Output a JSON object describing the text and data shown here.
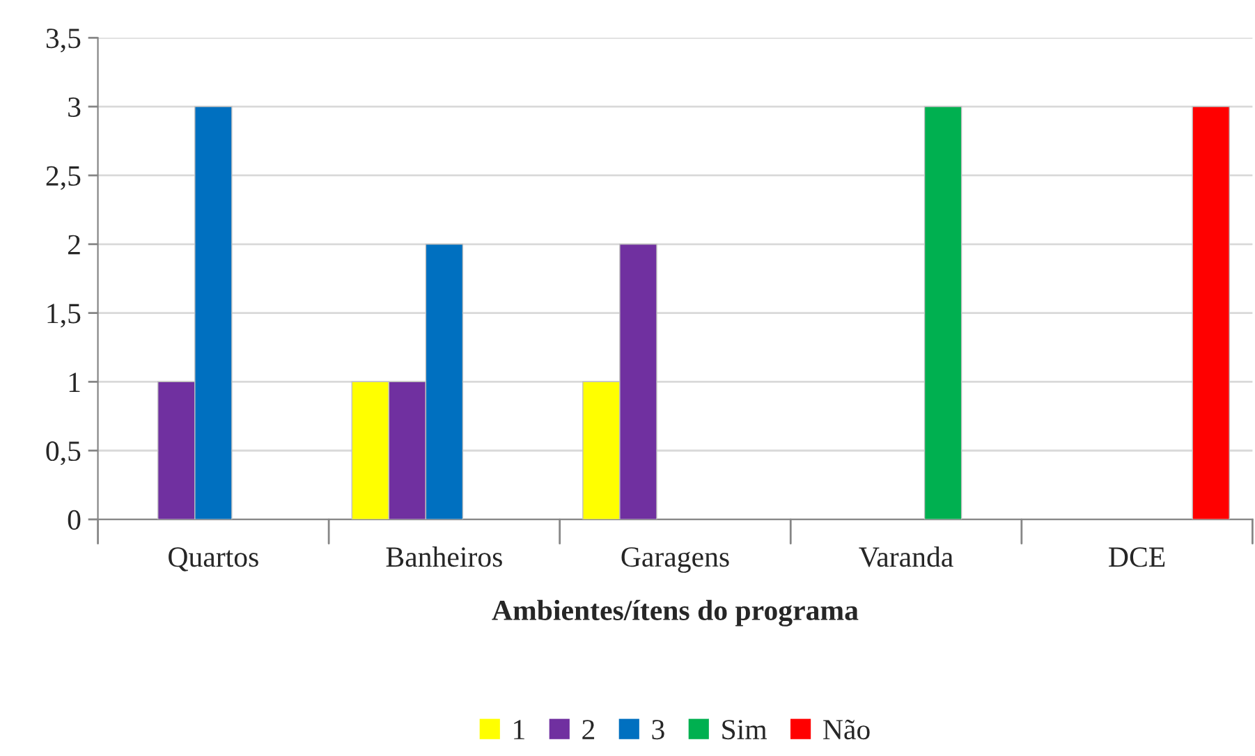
{
  "chart_data": {
    "type": "bar",
    "xlabel": "Ambientes/ítens do programa",
    "categories": [
      "Quartos",
      "Banheiros",
      "Garagens",
      "Varanda",
      "DCE"
    ],
    "series": [
      {
        "name": "1",
        "color": "#ffff00",
        "values": [
          null,
          1,
          1,
          null,
          null
        ]
      },
      {
        "name": "2",
        "color": "#7030a0",
        "values": [
          1,
          1,
          2,
          null,
          null
        ]
      },
      {
        "name": "3",
        "color": "#0070c0",
        "values": [
          3,
          2,
          null,
          null,
          null
        ]
      },
      {
        "name": "Sim",
        "color": "#00b050",
        "values": [
          null,
          null,
          null,
          3,
          null
        ]
      },
      {
        "name": "Não",
        "color": "#ff0000",
        "values": [
          null,
          null,
          null,
          null,
          3
        ]
      }
    ],
    "ylim": [
      0,
      3.5
    ],
    "yticks": [
      {
        "value": 0,
        "label": "0"
      },
      {
        "value": 0.5,
        "label": "0,5"
      },
      {
        "value": 1,
        "label": "1"
      },
      {
        "value": 1.5,
        "label": "1,5"
      },
      {
        "value": 2,
        "label": "2"
      },
      {
        "value": 2.5,
        "label": "2,5"
      },
      {
        "value": 3,
        "label": "3"
      },
      {
        "value": 3.5,
        "label": "3,5"
      }
    ],
    "grid": "y",
    "legend": "bottom"
  }
}
